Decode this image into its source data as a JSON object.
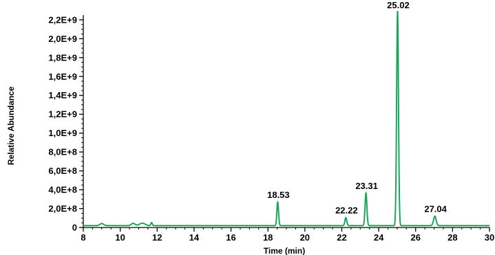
{
  "chart_data": {
    "type": "line",
    "title": "",
    "xlabel": "Time (min)",
    "ylabel": "Relative Abundance",
    "xlim": [
      8,
      30
    ],
    "ylim": [
      0,
      2250000000
    ],
    "grid": false,
    "legend": "none",
    "x_ticks": [
      {
        "value": 8,
        "label": "8"
      },
      {
        "value": 10,
        "label": "10"
      },
      {
        "value": 12,
        "label": "12"
      },
      {
        "value": 14,
        "label": "14"
      },
      {
        "value": 16,
        "label": "16"
      },
      {
        "value": 18,
        "label": "18"
      },
      {
        "value": 20,
        "label": "20"
      },
      {
        "value": 22,
        "label": "22"
      },
      {
        "value": 24,
        "label": "24"
      },
      {
        "value": 26,
        "label": "26"
      },
      {
        "value": 28,
        "label": "28"
      },
      {
        "value": 30,
        "label": "30"
      }
    ],
    "y_ticks": [
      {
        "value": 0,
        "label": "0"
      },
      {
        "value": 200000000,
        "label": "2,0E+8"
      },
      {
        "value": 400000000,
        "label": "4,0E+8"
      },
      {
        "value": 600000000,
        "label": "6,0E+8"
      },
      {
        "value": 800000000,
        "label": "8,0E+8"
      },
      {
        "value": 1000000000,
        "label": "1,0E+9"
      },
      {
        "value": 1200000000,
        "label": "1,2E+9"
      },
      {
        "value": 1400000000,
        "label": "1,4E+9"
      },
      {
        "value": 1600000000,
        "label": "1,6E+9"
      },
      {
        "value": 1800000000,
        "label": "1,8E+9"
      },
      {
        "value": 2000000000,
        "label": "2,0E+9"
      },
      {
        "value": 2200000000,
        "label": "2,2E+9"
      }
    ],
    "line_color": "#1aa55a",
    "baseline": 20000000,
    "bumps": [
      {
        "rt": 9.0,
        "height": 22000000,
        "width": 0.1
      },
      {
        "rt": 10.7,
        "height": 24000000,
        "width": 0.1
      },
      {
        "rt": 11.2,
        "height": 26000000,
        "width": 0.15
      },
      {
        "rt": 11.7,
        "height": 32000000,
        "width": 0.04
      }
    ],
    "peaks": [
      {
        "rt": 18.53,
        "label": "18.53",
        "height": 250000000,
        "width": 0.045
      },
      {
        "rt": 22.22,
        "label": "22.22",
        "height": 85000000,
        "width": 0.05
      },
      {
        "rt": 23.31,
        "label": "23.31",
        "height": 345000000,
        "width": 0.05
      },
      {
        "rt": 25.02,
        "label": "25.02",
        "height": 2275000000,
        "width": 0.05
      },
      {
        "rt": 27.04,
        "label": "27.04",
        "height": 100000000,
        "width": 0.07
      }
    ]
  }
}
